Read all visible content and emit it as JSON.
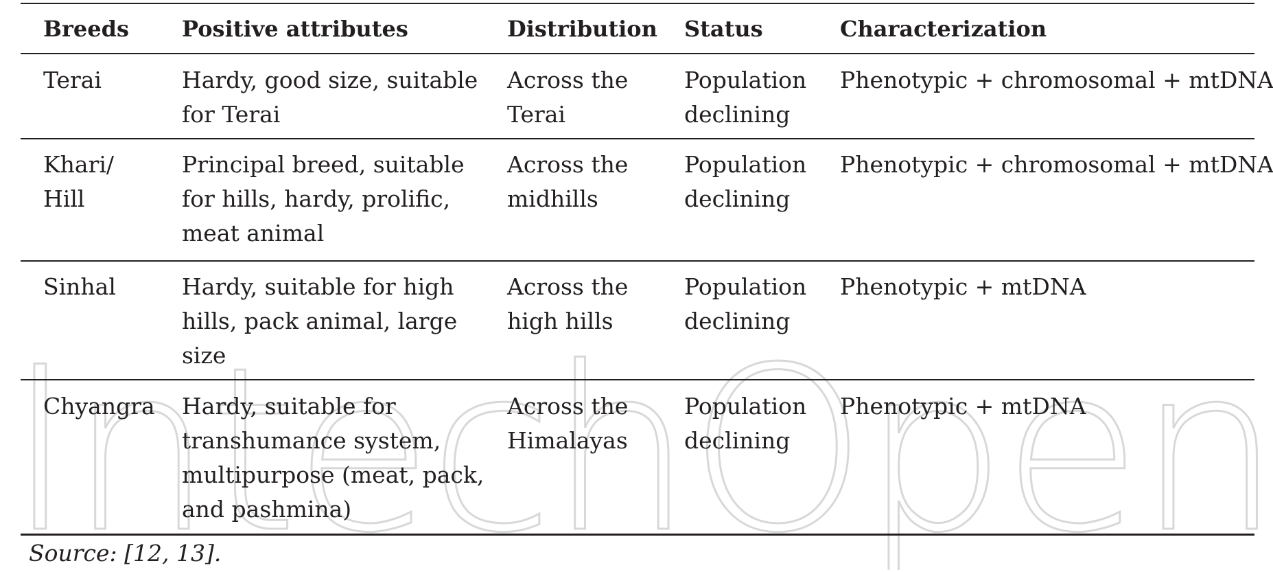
{
  "watermark": "IntechOpen",
  "table": {
    "headers": [
      "Breeds",
      "Positive attributes",
      "Distribution",
      "Status",
      "Characterization"
    ],
    "rows": [
      [
        [
          "Terai"
        ],
        [
          "Hardy, good size, suitable",
          "for Terai"
        ],
        [
          "Across the",
          "Terai"
        ],
        [
          "Population",
          "declining"
        ],
        [
          "Phenotypic + chromosomal + mtDNA"
        ]
      ],
      [
        [
          "Khari/",
          "Hill"
        ],
        [
          "Principal breed, suitable",
          "for hills, hardy, prolific,",
          "meat animal"
        ],
        [
          "Across the",
          "midhills"
        ],
        [
          "Population",
          "declining"
        ],
        [
          "Phenotypic + chromosomal + mtDNA"
        ]
      ],
      [
        [
          "Sinhal"
        ],
        [
          "Hardy, suitable for high",
          "hills, pack animal, large",
          "size"
        ],
        [
          "Across the",
          "high hills"
        ],
        [
          "Population",
          "declining"
        ],
        [
          "Phenotypic + mtDNA"
        ]
      ],
      [
        [
          "Chyangra"
        ],
        [
          "Hardy, suitable for",
          "transhumance system,",
          "multipurpose (meat, pack,",
          "and pashmina)"
        ],
        [
          "Across the",
          "Himalayas"
        ],
        [
          "Population",
          "declining"
        ],
        [
          "Phenotypic + mtDNA"
        ]
      ]
    ]
  },
  "source": "Source: [12, 13]."
}
